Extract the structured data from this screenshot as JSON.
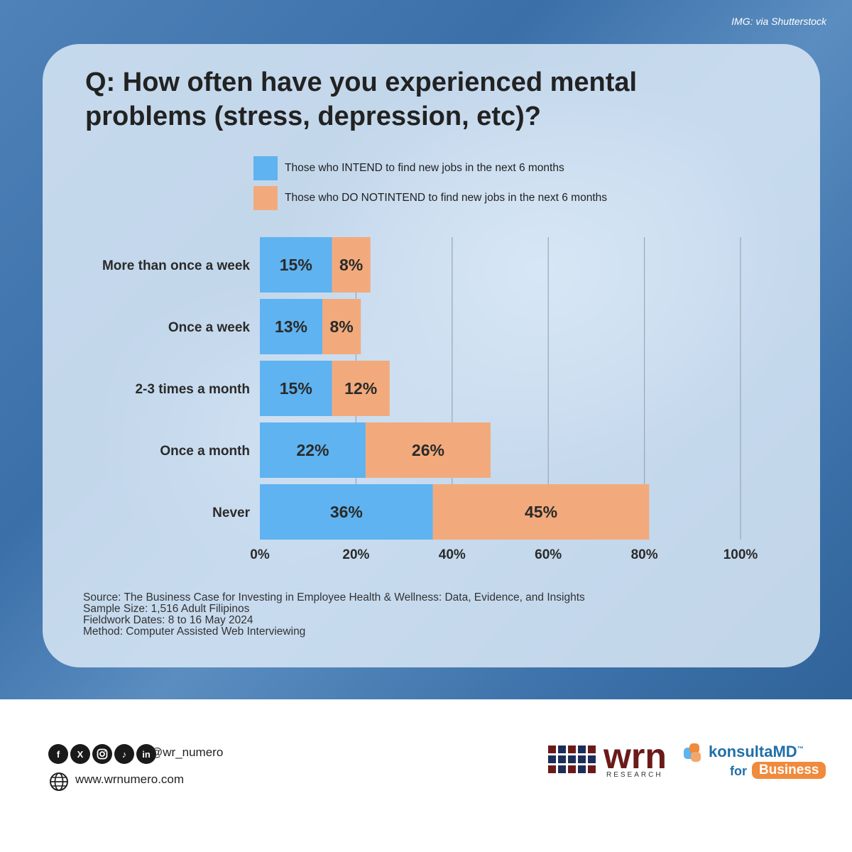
{
  "credit": "IMG: via Shutterstock",
  "title": "Q: How often have you experienced mental problems (stress, depression, etc)?",
  "legend": [
    {
      "label": "Those who INTEND to find new jobs in the next 6 months",
      "color": "#5fb3f0"
    },
    {
      "label": "Those who DO NOTINTEND to find new jobs in the next 6 months",
      "color": "#f2aa7c"
    }
  ],
  "chart_data": {
    "type": "bar",
    "orientation": "horizontal",
    "stacked": true,
    "categories": [
      "More than once a week",
      "Once a week",
      "2-3 times a month",
      "Once a month",
      "Never"
    ],
    "series": [
      {
        "name": "Those who INTEND to find new jobs in the next 6 months",
        "values": [
          15,
          13,
          15,
          22,
          36
        ],
        "labels": [
          "15%",
          "13%",
          "15%",
          "22%",
          "36%"
        ],
        "color": "#5fb3f0"
      },
      {
        "name": "Those who DO NOTINTEND to find new jobs in the next 6 months",
        "values": [
          8,
          8,
          12,
          26,
          45
        ],
        "labels": [
          "8%",
          "8%",
          "12%",
          "26%",
          "45%"
        ],
        "color": "#f2aa7c"
      }
    ],
    "xlim": [
      0,
      100
    ],
    "xticks": [
      "0%",
      "20%",
      "40%",
      "60%",
      "80%",
      "100%"
    ],
    "grid": "vertical",
    "legend_position": "top"
  },
  "source_lines": [
    "Source: The Business Case for Investing in Employee Health & Wellness: Data, Evidence, and Insights",
    "Sample Size: 1,516 Adult Filipinos",
    "Fieldwork Dates: 8 to 16 May 2024",
    "Method: Computer Assisted Web Interviewing"
  ],
  "footer": {
    "handle": "@wr_numero",
    "website": "www.wrnumero.com",
    "social_icons": [
      "facebook-icon",
      "x-icon",
      "instagram-icon",
      "tiktok-icon",
      "linkedin-icon"
    ],
    "wrn_logo": {
      "main": "wrn",
      "sub": "RESEARCH"
    },
    "konsulta_logo": {
      "name": "konsultaMD",
      "tm": "™",
      "for": "for",
      "business": "Business"
    }
  }
}
